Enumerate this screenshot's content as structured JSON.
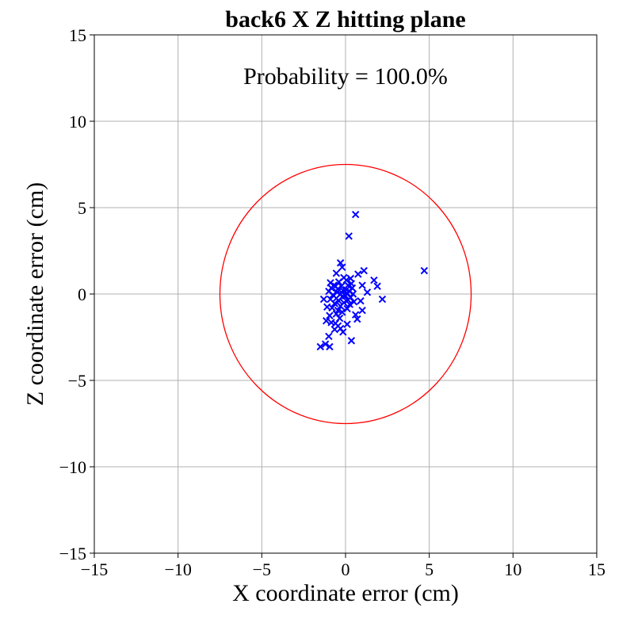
{
  "chart_data": {
    "type": "scatter",
    "title": "back6 X Z hitting plane",
    "annotation": "Probability = 100.0%",
    "xlabel": "X coordinate error (cm)",
    "ylabel": "Z coordinate error (cm)",
    "xlim": [
      -15,
      15
    ],
    "ylim": [
      -15,
      15
    ],
    "xticks": [
      -15,
      -10,
      -5,
      0,
      5,
      10,
      15
    ],
    "yticks": [
      -15,
      -10,
      -5,
      0,
      5,
      10,
      15
    ],
    "xtick_labels": [
      "−15",
      "−10",
      "−5",
      "0",
      "5",
      "10",
      "15"
    ],
    "ytick_labels": [
      "−15",
      "−10",
      "−5",
      "0",
      "5",
      "10",
      "15"
    ],
    "grid": true,
    "marker": "x",
    "colors": {
      "points": "#0000ff",
      "circle": "#ff0000",
      "grid": "#b0b0b0",
      "axes": "#000000"
    },
    "circle": {
      "center": [
        0,
        0
      ],
      "radius": 7.5
    },
    "points": [
      [
        0.6,
        4.6
      ],
      [
        0.2,
        3.35
      ],
      [
        4.7,
        1.35
      ],
      [
        -0.3,
        1.8
      ],
      [
        -0.2,
        1.55
      ],
      [
        1.1,
        1.35
      ],
      [
        0.75,
        1.15
      ],
      [
        -0.55,
        1.2
      ],
      [
        1.7,
        0.8
      ],
      [
        -0.9,
        0.65
      ],
      [
        -0.1,
        0.95
      ],
      [
        0.3,
        0.9
      ],
      [
        0.05,
        0.8
      ],
      [
        -0.4,
        0.7
      ],
      [
        0.35,
        0.6
      ],
      [
        -0.7,
        0.5
      ],
      [
        1.0,
        0.5
      ],
      [
        1.3,
        0.1
      ],
      [
        1.9,
        0.45
      ],
      [
        -0.6,
        0.45
      ],
      [
        0.15,
        0.5
      ],
      [
        -0.25,
        0.45
      ],
      [
        -0.85,
        0.35
      ],
      [
        0.4,
        0.35
      ],
      [
        -0.45,
        0.3
      ],
      [
        0.05,
        0.25
      ],
      [
        -0.15,
        0.2
      ],
      [
        0.25,
        0.15
      ],
      [
        -1.0,
        0.15
      ],
      [
        -0.5,
        0.1
      ],
      [
        0.1,
        0.05
      ],
      [
        -0.3,
        0.0
      ],
      [
        0.45,
        0.0
      ],
      [
        -0.75,
        -0.05
      ],
      [
        0.0,
        -0.1
      ],
      [
        -0.2,
        -0.15
      ],
      [
        0.3,
        -0.2
      ],
      [
        -1.3,
        -0.3
      ],
      [
        -0.55,
        -0.25
      ],
      [
        -0.9,
        -0.3
      ],
      [
        0.15,
        -0.35
      ],
      [
        -0.4,
        -0.4
      ],
      [
        0.5,
        -0.45
      ],
      [
        0.9,
        -0.4
      ],
      [
        -0.1,
        -0.5
      ],
      [
        -0.65,
        -0.55
      ],
      [
        0.25,
        -0.6
      ],
      [
        -0.3,
        -0.7
      ],
      [
        2.2,
        -0.3
      ],
      [
        -1.1,
        -0.75
      ],
      [
        -0.8,
        -0.8
      ],
      [
        0.1,
        -0.85
      ],
      [
        -0.45,
        -0.95
      ],
      [
        1.0,
        -0.95
      ],
      [
        -0.2,
        -1.05
      ],
      [
        -0.55,
        -1.15
      ],
      [
        0.6,
        -1.2
      ],
      [
        -0.95,
        -1.25
      ],
      [
        -0.35,
        -1.4
      ],
      [
        0.7,
        -1.45
      ],
      [
        -1.15,
        -1.55
      ],
      [
        -0.6,
        -1.7
      ],
      [
        -0.85,
        -1.65
      ],
      [
        0.1,
        -1.75
      ],
      [
        -0.45,
        -1.85
      ],
      [
        -0.3,
        -2.0
      ],
      [
        -0.65,
        -2.05
      ],
      [
        -0.15,
        -2.2
      ],
      [
        -1.0,
        -2.45
      ],
      [
        0.35,
        -2.7
      ],
      [
        -1.5,
        -3.05
      ],
      [
        -1.2,
        -2.9
      ],
      [
        -0.95,
        -3.05
      ]
    ]
  }
}
